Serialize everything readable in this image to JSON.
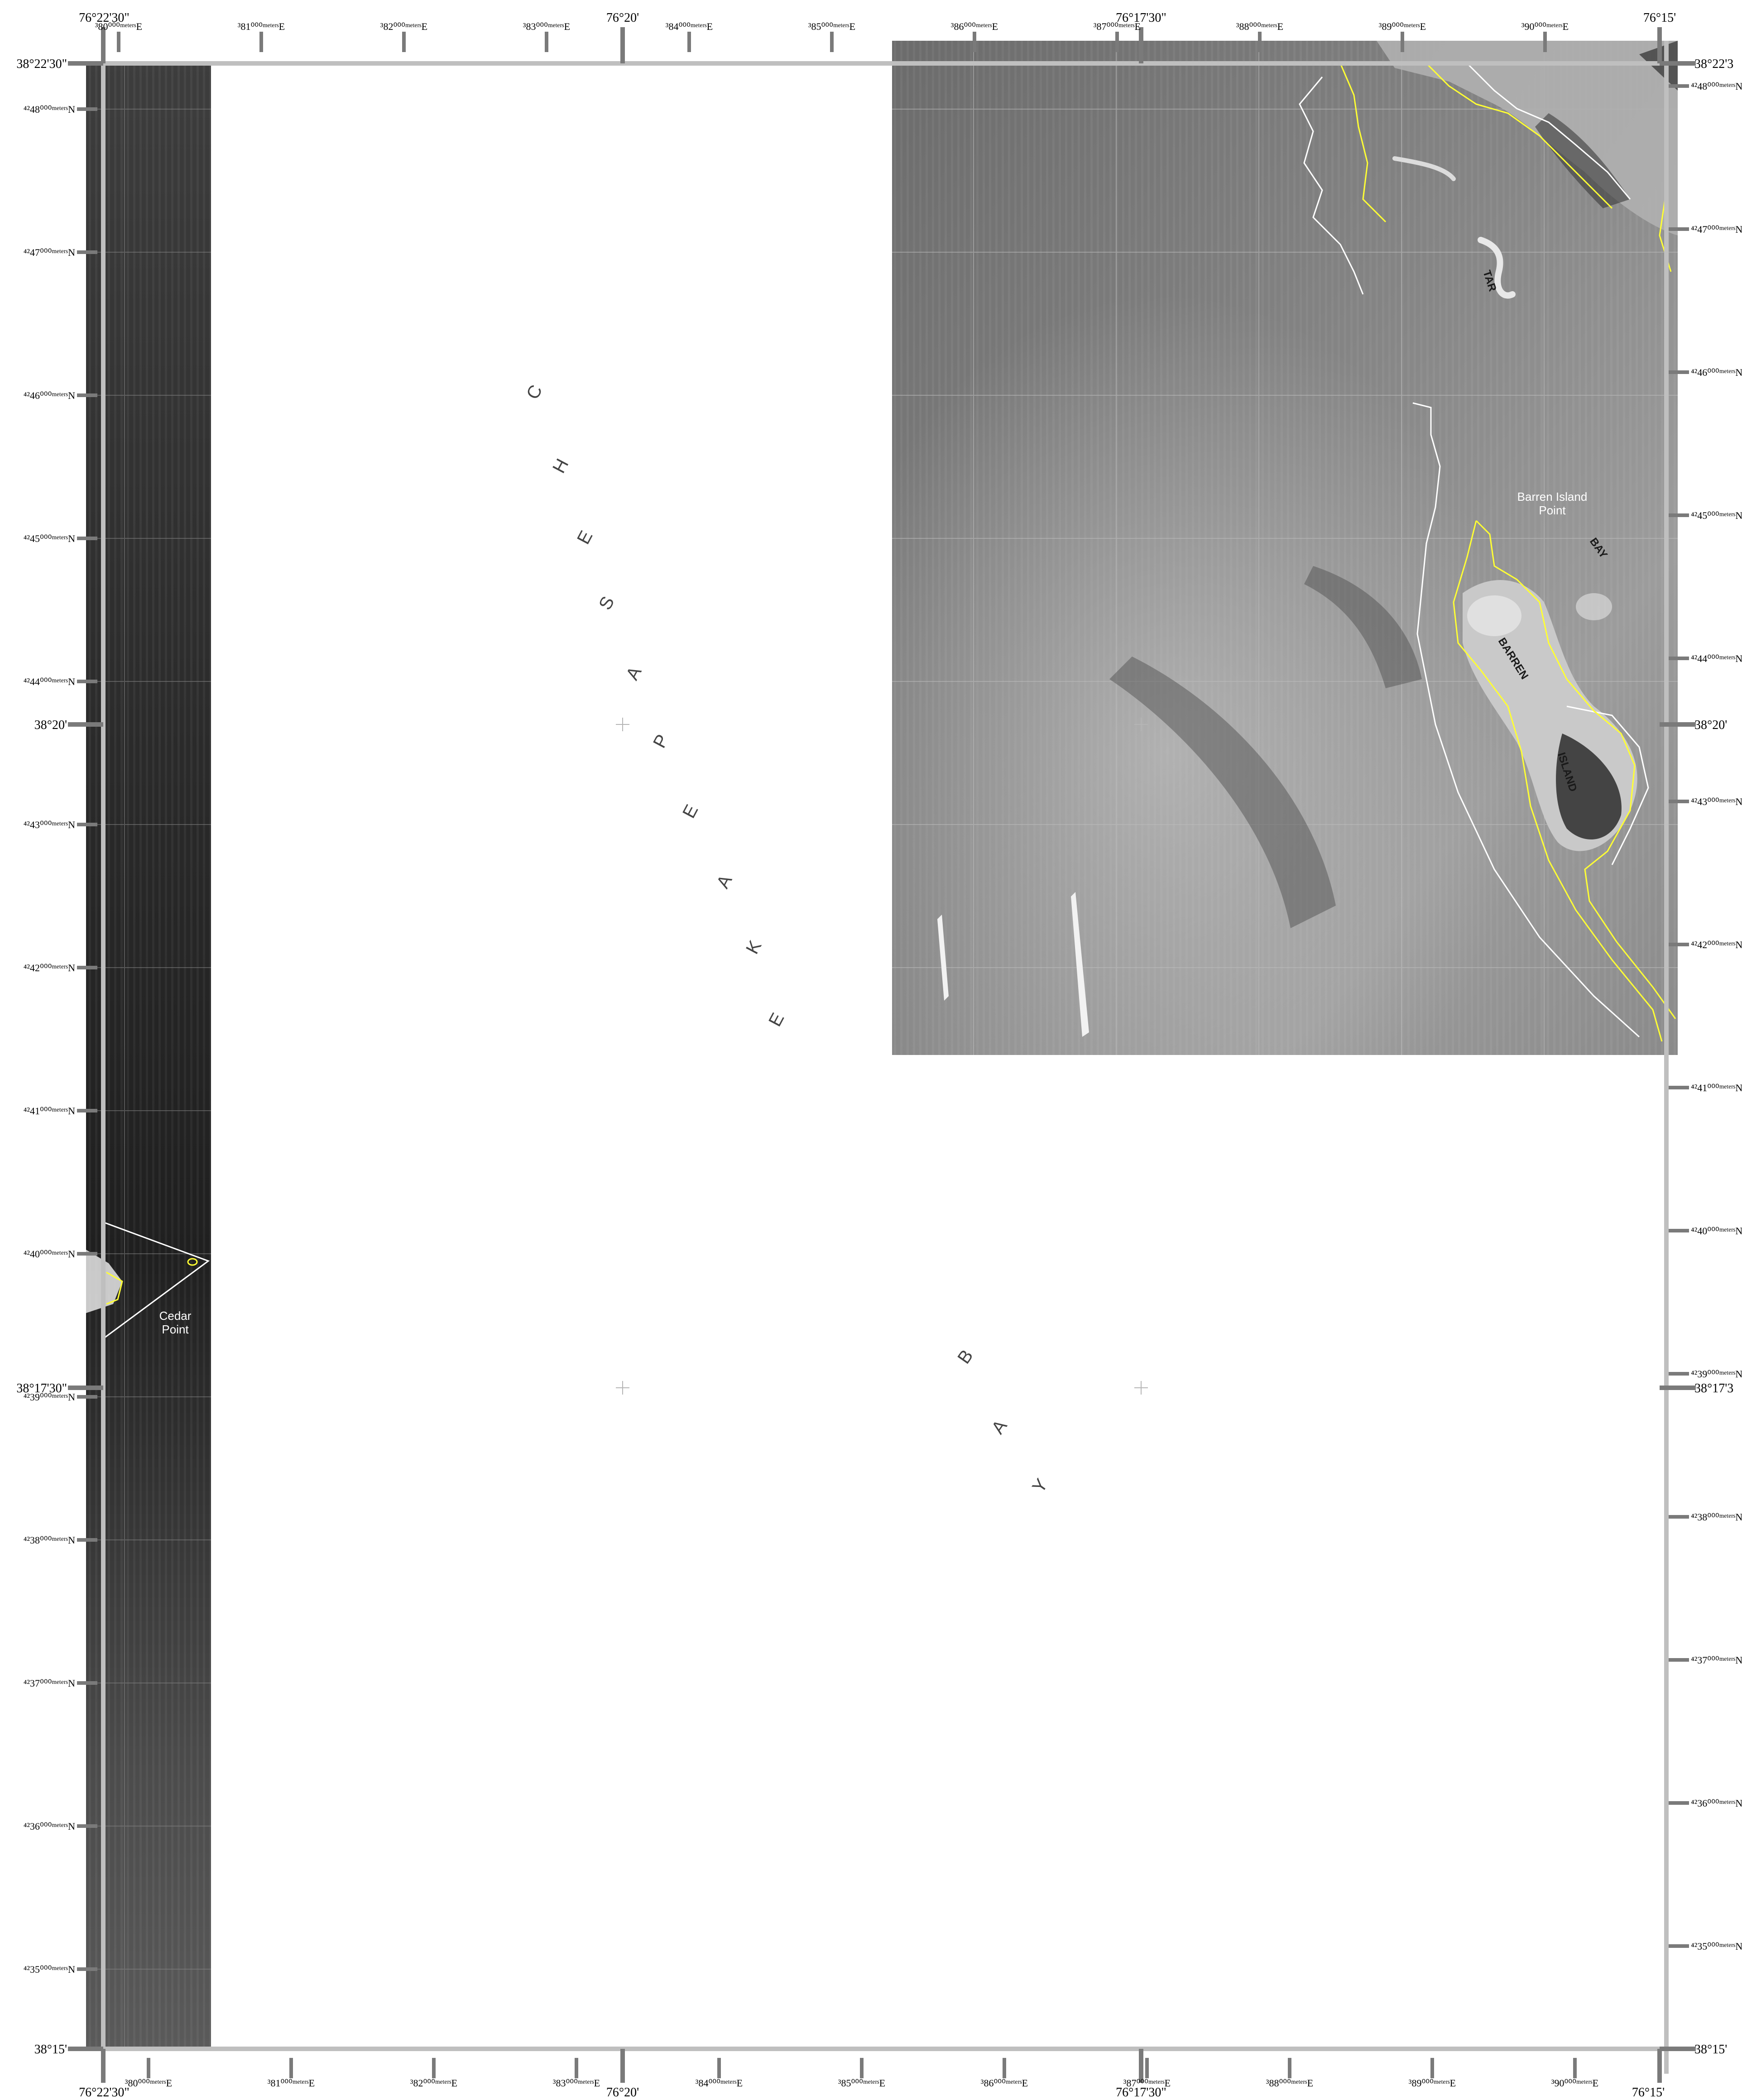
{
  "map": {
    "longitude_labels_top": [
      "76°22'30\"",
      "76°20'",
      "76°17'30\"",
      "76°15'"
    ],
    "longitude_labels_bottom": [
      "76°22'30\"",
      "76°20'",
      "76°17'30\"",
      "76°15'"
    ],
    "latitude_labels_left": [
      "38°22'30\"",
      "38°20'",
      "38°17'30\"",
      "38°15'"
    ],
    "latitude_labels_right": [
      "38°22'3",
      "38°20'",
      "38°17'3",
      "38°15'"
    ],
    "utm_easting_top": [
      "³80⁰⁰⁰ᵐᵉᵗᵉʳˢE",
      "³81⁰⁰⁰ᵐᵉᵗᵉʳˢE",
      "³82⁰⁰⁰ᵐᵉᵗᵉʳˢE",
      "³83⁰⁰⁰ᵐᵉᵗᵉʳˢE",
      "³84⁰⁰⁰ᵐᵉᵗᵉʳˢE",
      "³85⁰⁰⁰ᵐᵉᵗᵉʳˢE",
      "³86⁰⁰⁰ᵐᵉᵗᵉʳˢE",
      "³87⁰⁰⁰ᵐᵉᵗᵉʳˢE",
      "³88⁰⁰⁰ᵐᵉᵗᵉʳˢE",
      "³89⁰⁰⁰ᵐᵉᵗᵉʳˢE",
      "³90⁰⁰⁰ᵐᵉᵗᵉʳˢE"
    ],
    "utm_easting_bottom": [
      "³80⁰⁰⁰ᵐᵉᵗᵉʳˢE",
      "³81⁰⁰⁰ᵐᵉᵗᵉʳˢE",
      "³82⁰⁰⁰ᵐᵉᵗᵉʳˢE",
      "³83⁰⁰⁰ᵐᵉᵗᵉʳˢE",
      "³84⁰⁰⁰ᵐᵉᵗᵉʳˢE",
      "³85⁰⁰⁰ᵐᵉᵗᵉʳˢE",
      "³86⁰⁰⁰ᵐᵉᵗᵉʳˢE",
      "³87⁰⁰⁰ᵐᵉᵗᵉʳˢE",
      "³88⁰⁰⁰ᵐᵉᵗᵉʳˢE",
      "³89⁰⁰⁰ᵐᵉᵗᵉʳˢE",
      "³90⁰⁰⁰ᵐᵉᵗᵉʳˢE"
    ],
    "utm_northing_left": [
      "⁴²48⁰⁰⁰ᵐᵉᵗᵉʳˢN",
      "⁴²47⁰⁰⁰ᵐᵉᵗᵉʳˢN",
      "⁴²46⁰⁰⁰ᵐᵉᵗᵉʳˢN",
      "⁴²45⁰⁰⁰ᵐᵉᵗᵉʳˢN",
      "⁴²44⁰⁰⁰ᵐᵉᵗᵉʳˢN",
      "⁴²43⁰⁰⁰ᵐᵉᵗᵉʳˢN",
      "⁴²42⁰⁰⁰ᵐᵉᵗᵉʳˢN",
      "⁴²41⁰⁰⁰ᵐᵉᵗᵉʳˢN",
      "⁴²40⁰⁰⁰ᵐᵉᵗᵉʳˢN",
      "⁴²39⁰⁰⁰ᵐᵉᵗᵉʳˢN",
      "⁴²38⁰⁰⁰ᵐᵉᵗᵉʳˢN",
      "⁴²37⁰⁰⁰ᵐᵉᵗᵉʳˢN",
      "⁴²36⁰⁰⁰ᵐᵉᵗᵉʳˢN",
      "⁴²35⁰⁰⁰ᵐᵉᵗᵉʳˢN"
    ],
    "utm_northing_right": [
      "⁴²48⁰⁰⁰ᵐᵉᵗᵉʳˢN",
      "⁴²47⁰⁰⁰ᵐᵉᵗᵉʳˢN",
      "⁴²46⁰⁰⁰ᵐᵉᵗᵉʳˢN",
      "⁴²45⁰⁰⁰ᵐᵉᵗᵉʳˢN",
      "⁴²44⁰⁰⁰ᵐᵉᵗᵉʳˢN",
      "⁴²43⁰⁰⁰ᵐᵉᵗᵉʳˢN",
      "⁴²42⁰⁰⁰ᵐᵉᵗᵉʳˢN",
      "⁴²41⁰⁰⁰ᵐᵉᵗᵉʳˢN",
      "⁴²40⁰⁰⁰ᵐᵉᵗᵉʳˢN",
      "⁴²39⁰⁰⁰ᵐᵉᵗᵉʳˢN",
      "⁴²38⁰⁰⁰ᵐᵉᵗᵉʳˢN",
      "⁴²37⁰⁰⁰ᵐᵉᵗᵉʳˢN",
      "⁴²36⁰⁰⁰ᵐᵉᵗᵉʳˢN",
      "⁴²35⁰⁰⁰ᵐᵉᵗᵉʳˢN"
    ],
    "place_labels": {
      "barren_island_point": [
        "Barren Island",
        "Point"
      ],
      "cedar_point": [
        "Cedar",
        "Point"
      ],
      "barren_island": [
        "BARREN",
        "ISLAND"
      ],
      "tar_bay": [
        "TAR",
        "BAY"
      ]
    },
    "water_labels": {
      "chesapeake_letters": [
        "C",
        "H",
        "E",
        "S",
        "A",
        "P",
        "E",
        "A",
        "K",
        "E"
      ],
      "bay_letters": [
        "B",
        "A",
        "Y"
      ]
    },
    "colors": {
      "frame": "#bfbfbf",
      "tick": "#7a7a7a",
      "shoreline_current": "#ffff33",
      "shoreline_historic": "#ffffff",
      "imagery_dark": "#3a3a3a",
      "imagery_mid": "#7d7d7d"
    }
  }
}
